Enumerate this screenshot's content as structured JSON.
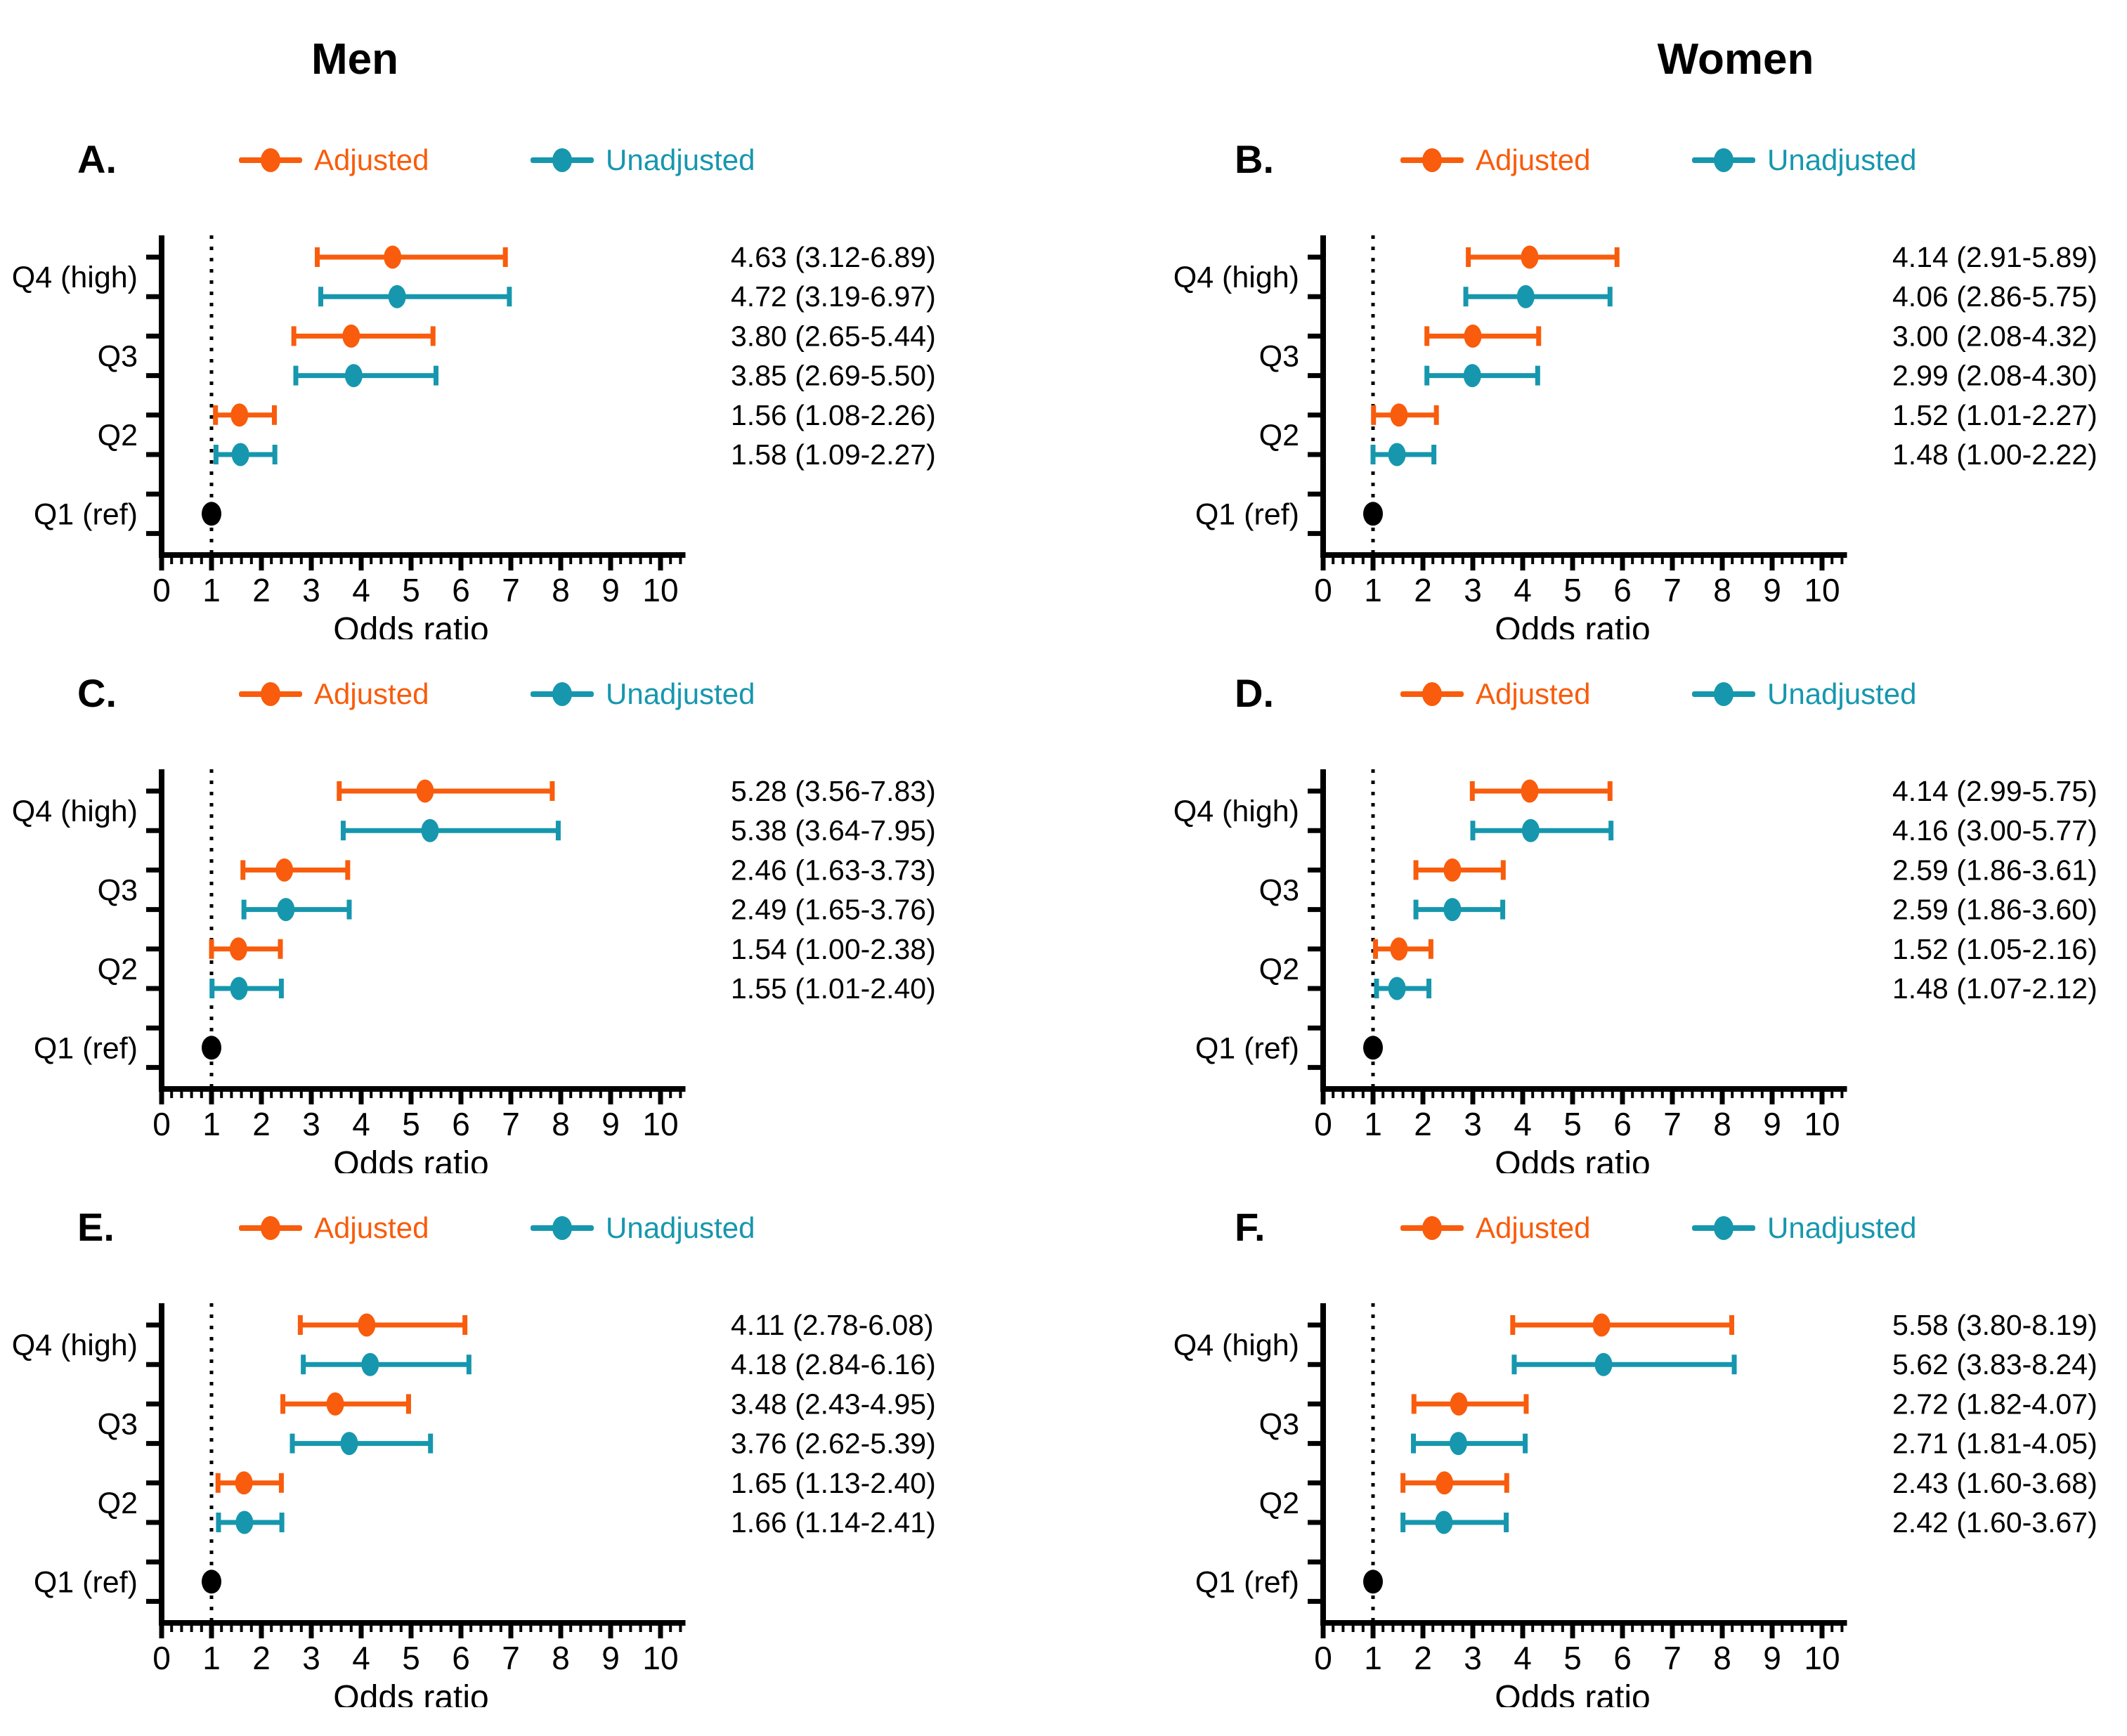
{
  "figure": {
    "column_titles": {
      "left": "Men",
      "right": "Women"
    },
    "legend": {
      "adjusted_label": "Adjusted",
      "unadjusted_label": "Unadjusted"
    },
    "axis": {
      "xlabel": "Odds ratio",
      "xticks": [
        0,
        1,
        2,
        3,
        4,
        5,
        6,
        7,
        8,
        9,
        10
      ],
      "xmin": 0,
      "xmax": 10.5,
      "minor_tick_step": 0.2,
      "reference_line_x": 1
    },
    "ylabels": [
      "Q4 (high)",
      "Q3",
      "Q2",
      "Q1 (ref)"
    ],
    "colors": {
      "adjusted": "#F85C0C",
      "unadjusted": "#1697AE",
      "reference": "#000000"
    }
  },
  "chart_data": [
    {
      "panel": "A.",
      "column": "Men",
      "type": "scatter",
      "variant": "forest-odds-ratio",
      "categories": [
        "Q4 (high)",
        "Q3",
        "Q2"
      ],
      "series": [
        {
          "name": "Adjusted",
          "color_key": "adjusted",
          "points": [
            {
              "or": 4.63,
              "lo": 3.12,
              "hi": 6.89
            },
            {
              "or": 3.8,
              "lo": 2.65,
              "hi": 5.44
            },
            {
              "or": 1.56,
              "lo": 1.08,
              "hi": 2.26
            }
          ]
        },
        {
          "name": "Unadjusted",
          "color_key": "unadjusted",
          "points": [
            {
              "or": 4.72,
              "lo": 3.19,
              "hi": 6.97
            },
            {
              "or": 3.85,
              "lo": 2.69,
              "hi": 5.5
            },
            {
              "or": 1.58,
              "lo": 1.09,
              "hi": 2.27
            }
          ]
        }
      ],
      "reference": {
        "label": "Q1 (ref)",
        "or": 1.0
      },
      "annotations": [
        "4.63 (3.12-6.89)",
        "4.72 (3.19-6.97)",
        "3.80 (2.65-5.44)",
        "3.85 (2.69-5.50)",
        "1.56 (1.08-2.26)",
        "1.58 (1.09-2.27)"
      ]
    },
    {
      "panel": "B.",
      "column": "Women",
      "type": "scatter",
      "variant": "forest-odds-ratio",
      "categories": [
        "Q4 (high)",
        "Q3",
        "Q2"
      ],
      "series": [
        {
          "name": "Adjusted",
          "color_key": "adjusted",
          "points": [
            {
              "or": 4.14,
              "lo": 2.91,
              "hi": 5.89
            },
            {
              "or": 3.0,
              "lo": 2.08,
              "hi": 4.32
            },
            {
              "or": 1.52,
              "lo": 1.01,
              "hi": 2.27
            }
          ]
        },
        {
          "name": "Unadjusted",
          "color_key": "unadjusted",
          "points": [
            {
              "or": 4.06,
              "lo": 2.86,
              "hi": 5.75
            },
            {
              "or": 2.99,
              "lo": 2.08,
              "hi": 4.3
            },
            {
              "or": 1.48,
              "lo": 1.0,
              "hi": 2.22
            }
          ]
        }
      ],
      "reference": {
        "label": "Q1 (ref)",
        "or": 1.0
      },
      "annotations": [
        "4.14 (2.91-5.89)",
        "4.06 (2.86-5.75)",
        "3.00 (2.08-4.32)",
        "2.99 (2.08-4.30)",
        "1.52 (1.01-2.27)",
        "1.48 (1.00-2.22)"
      ]
    },
    {
      "panel": "C.",
      "column": "Men",
      "type": "scatter",
      "variant": "forest-odds-ratio",
      "categories": [
        "Q4 (high)",
        "Q3",
        "Q2"
      ],
      "series": [
        {
          "name": "Adjusted",
          "color_key": "adjusted",
          "points": [
            {
              "or": 5.28,
              "lo": 3.56,
              "hi": 7.83
            },
            {
              "or": 2.46,
              "lo": 1.63,
              "hi": 3.73
            },
            {
              "or": 1.54,
              "lo": 1.0,
              "hi": 2.38
            }
          ]
        },
        {
          "name": "Unadjusted",
          "color_key": "unadjusted",
          "points": [
            {
              "or": 5.38,
              "lo": 3.64,
              "hi": 7.95
            },
            {
              "or": 2.49,
              "lo": 1.65,
              "hi": 3.76
            },
            {
              "or": 1.55,
              "lo": 1.01,
              "hi": 2.4
            }
          ]
        }
      ],
      "reference": {
        "label": "Q1 (ref)",
        "or": 1.0
      },
      "annotations": [
        "5.28 (3.56-7.83)",
        "5.38 (3.64-7.95)",
        "2.46 (1.63-3.73)",
        "2.49 (1.65-3.76)",
        "1.54 (1.00-2.38)",
        "1.55 (1.01-2.40)"
      ]
    },
    {
      "panel": "D.",
      "column": "Women",
      "type": "scatter",
      "variant": "forest-odds-ratio",
      "categories": [
        "Q4 (high)",
        "Q3",
        "Q2"
      ],
      "series": [
        {
          "name": "Adjusted",
          "color_key": "adjusted",
          "points": [
            {
              "or": 4.14,
              "lo": 2.99,
              "hi": 5.75
            },
            {
              "or": 2.59,
              "lo": 1.86,
              "hi": 3.61
            },
            {
              "or": 1.52,
              "lo": 1.05,
              "hi": 2.16
            }
          ]
        },
        {
          "name": "Unadjusted",
          "color_key": "unadjusted",
          "points": [
            {
              "or": 4.16,
              "lo": 3.0,
              "hi": 5.77
            },
            {
              "or": 2.59,
              "lo": 1.86,
              "hi": 3.6
            },
            {
              "or": 1.48,
              "lo": 1.07,
              "hi": 2.12
            }
          ]
        }
      ],
      "reference": {
        "label": "Q1 (ref)",
        "or": 1.0
      },
      "annotations": [
        "4.14 (2.99-5.75)",
        "4.16 (3.00-5.77)",
        "2.59 (1.86-3.61)",
        "2.59 (1.86-3.60)",
        "1.52 (1.05-2.16)",
        "1.48 (1.07-2.12)"
      ]
    },
    {
      "panel": "E.",
      "column": "Men",
      "type": "scatter",
      "variant": "forest-odds-ratio",
      "categories": [
        "Q4 (high)",
        "Q3",
        "Q2"
      ],
      "series": [
        {
          "name": "Adjusted",
          "color_key": "adjusted",
          "points": [
            {
              "or": 4.11,
              "lo": 2.78,
              "hi": 6.08
            },
            {
              "or": 3.48,
              "lo": 2.43,
              "hi": 4.95
            },
            {
              "or": 1.65,
              "lo": 1.13,
              "hi": 2.4
            }
          ]
        },
        {
          "name": "Unadjusted",
          "color_key": "unadjusted",
          "points": [
            {
              "or": 4.18,
              "lo": 2.84,
              "hi": 6.16
            },
            {
              "or": 3.76,
              "lo": 2.62,
              "hi": 5.39
            },
            {
              "or": 1.66,
              "lo": 1.14,
              "hi": 2.41
            }
          ]
        }
      ],
      "reference": {
        "label": "Q1 (ref)",
        "or": 1.0
      },
      "annotations": [
        "4.11 (2.78-6.08)",
        "4.18 (2.84-6.16)",
        "3.48 (2.43-4.95)",
        "3.76 (2.62-5.39)",
        "1.65 (1.13-2.40)",
        "1.66 (1.14-2.41)"
      ]
    },
    {
      "panel": "F.",
      "column": "Women",
      "type": "scatter",
      "variant": "forest-odds-ratio",
      "categories": [
        "Q4 (high)",
        "Q3",
        "Q2"
      ],
      "series": [
        {
          "name": "Adjusted",
          "color_key": "adjusted",
          "points": [
            {
              "or": 5.58,
              "lo": 3.8,
              "hi": 8.19
            },
            {
              "or": 2.72,
              "lo": 1.82,
              "hi": 4.07
            },
            {
              "or": 2.43,
              "lo": 1.6,
              "hi": 3.68
            }
          ]
        },
        {
          "name": "Unadjusted",
          "color_key": "unadjusted",
          "points": [
            {
              "or": 5.62,
              "lo": 3.83,
              "hi": 8.24
            },
            {
              "or": 2.71,
              "lo": 1.81,
              "hi": 4.05
            },
            {
              "or": 2.42,
              "lo": 1.6,
              "hi": 3.67
            }
          ]
        }
      ],
      "reference": {
        "label": "Q1 (ref)",
        "or": 1.0
      },
      "annotations": [
        "5.58 (3.80-8.19)",
        "5.62 (3.83-8.24)",
        "2.72 (1.82-4.07)",
        "2.71 (1.81-4.05)",
        "2.43 (1.60-3.68)",
        "2.42 (1.60-3.67)"
      ]
    }
  ]
}
